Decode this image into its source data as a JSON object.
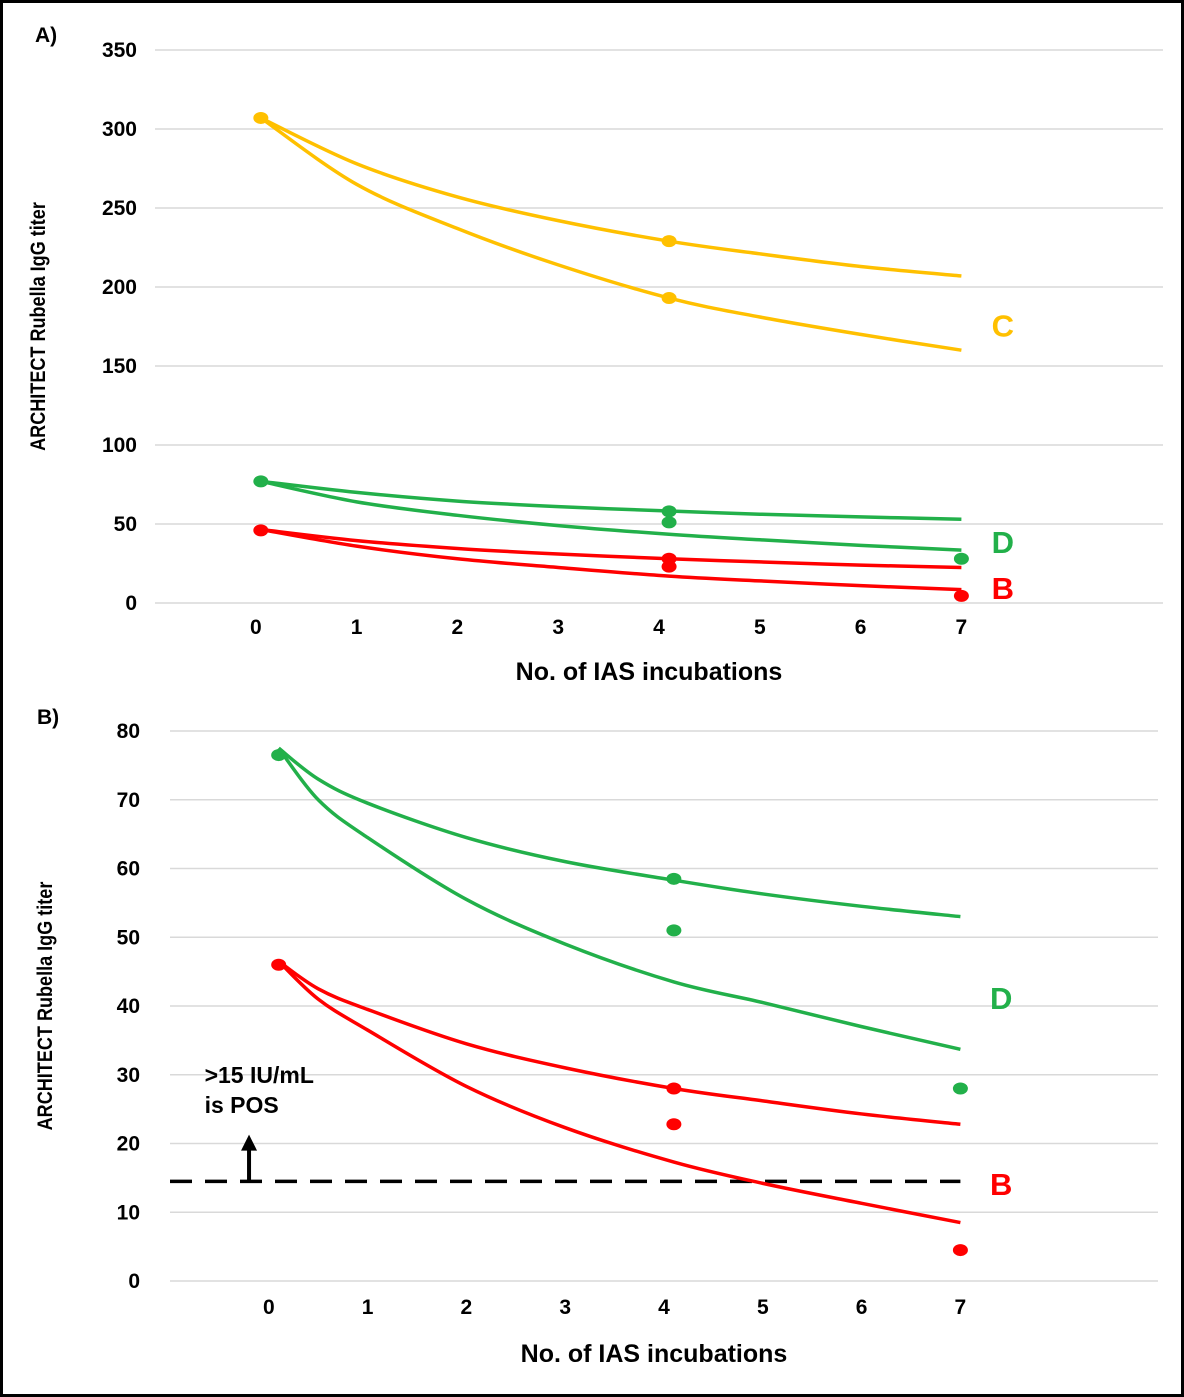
{
  "chart_data": [
    {
      "panel_label": "A)",
      "type": "scatter",
      "xlabel": "No. of IAS incubations",
      "ylabel": "ARCHITECT Rubella IgG titer",
      "xlim": [
        -1.0,
        9.0
      ],
      "ylim": [
        0,
        350
      ],
      "x_ticks": [
        "0",
        "1",
        "2",
        "3",
        "4",
        "5",
        "6",
        "7"
      ],
      "y_ticks": [
        "0",
        "50",
        "100",
        "150",
        "200",
        "250",
        "300",
        "350"
      ],
      "grid": "horizontal",
      "series": [
        {
          "group": "C",
          "color": "#FFC000",
          "points": [
            [
              0.05,
              307
            ],
            [
              4.1,
              229
            ],
            [
              4.1,
              193
            ]
          ],
          "curves": [
            [
              [
                0.05,
                307
              ],
              [
                1,
                278
              ],
              [
                2,
                257
              ],
              [
                3,
                242
              ],
              [
                4.1,
                229
              ],
              [
                5,
                221
              ],
              [
                6,
                213
              ],
              [
                7,
                207
              ]
            ],
            [
              [
                0.05,
                307
              ],
              [
                1,
                265
              ],
              [
                2,
                237
              ],
              [
                3,
                214
              ],
              [
                4.1,
                193
              ],
              [
                5,
                181
              ],
              [
                6,
                170
              ],
              [
                7,
                160
              ]
            ]
          ]
        },
        {
          "group": "D",
          "color": "#22B04A",
          "points": [
            [
              0.05,
              77
            ],
            [
              4.1,
              58
            ],
            [
              4.1,
              51
            ],
            [
              7,
              28
            ]
          ],
          "curves": [
            [
              [
                0.05,
                77
              ],
              [
                1,
                70
              ],
              [
                2,
                64.5
              ],
              [
                3,
                61
              ],
              [
                4.1,
                58.2
              ],
              [
                5,
                56.2
              ],
              [
                6,
                54.5
              ],
              [
                7,
                53
              ]
            ],
            [
              [
                0.05,
                77
              ],
              [
                1,
                64
              ],
              [
                2,
                55.5
              ],
              [
                3,
                49
              ],
              [
                4.1,
                43.5
              ],
              [
                5,
                40
              ],
              [
                6,
                36.5
              ],
              [
                7,
                33.5
              ]
            ]
          ]
        },
        {
          "group": "B",
          "color": "#FF0000",
          "points": [
            [
              0.05,
              46
            ],
            [
              4.1,
              28
            ],
            [
              4.1,
              23
            ],
            [
              7,
              4.5
            ]
          ],
          "curves": [
            [
              [
                0.05,
                46.5
              ],
              [
                1,
                39.5
              ],
              [
                2,
                34.5
              ],
              [
                3,
                31
              ],
              [
                4.1,
                28
              ],
              [
                5,
                26
              ],
              [
                6,
                24
              ],
              [
                7,
                22.5
              ]
            ],
            [
              [
                0.05,
                46.5
              ],
              [
                1,
                36
              ],
              [
                2,
                28
              ],
              [
                3,
                22.5
              ],
              [
                4.1,
                17
              ],
              [
                5,
                14
              ],
              [
                6,
                11
              ],
              [
                7,
                8.5
              ]
            ]
          ]
        }
      ],
      "group_labels": [
        {
          "text": "C",
          "color": "#FFC000",
          "x": 7.3,
          "y": 175
        },
        {
          "text": "D",
          "color": "#22B04A",
          "x": 7.3,
          "y": 38
        },
        {
          "text": "B",
          "color": "#FF0000",
          "x": 7.3,
          "y": 9
        }
      ]
    },
    {
      "panel_label": "B)",
      "type": "scatter",
      "xlabel": "No. of IAS incubations",
      "ylabel": "ARCHITECT Rubella IgG titer",
      "xlim": [
        -1.0,
        9.0
      ],
      "ylim": [
        0,
        80
      ],
      "x_ticks": [
        "0",
        "1",
        "2",
        "3",
        "4",
        "5",
        "6",
        "7"
      ],
      "y_ticks": [
        "0",
        "10",
        "20",
        "30",
        "40",
        "50",
        "60",
        "70",
        "80"
      ],
      "grid": "horizontal",
      "series": [
        {
          "group": "D",
          "color": "#22B04A",
          "points": [
            [
              0.1,
              76.5
            ],
            [
              4.1,
              58.5
            ],
            [
              4.1,
              51
            ],
            [
              7,
              28
            ]
          ],
          "curves": [
            [
              [
                0.1,
                77.5
              ],
              [
                0.5,
                73
              ],
              [
                1,
                69.5
              ],
              [
                2,
                64.5
              ],
              [
                3,
                61
              ],
              [
                4.1,
                58.3
              ],
              [
                5,
                56.3
              ],
              [
                6,
                54.5
              ],
              [
                7,
                53
              ]
            ],
            [
              [
                0.1,
                77.5
              ],
              [
                0.5,
                70
              ],
              [
                1,
                64.5
              ],
              [
                2,
                55.5
              ],
              [
                3,
                49
              ],
              [
                4.1,
                43.5
              ],
              [
                5,
                40.5
              ],
              [
                6,
                37
              ],
              [
                7,
                33.7
              ]
            ]
          ]
        },
        {
          "group": "B",
          "color": "#FF0000",
          "points": [
            [
              0.1,
              46
            ],
            [
              4.1,
              28
            ],
            [
              4.1,
              22.8
            ],
            [
              7,
              4.5
            ]
          ],
          "curves": [
            [
              [
                0.1,
                46.5
              ],
              [
                0.5,
                42.5
              ],
              [
                1,
                39.5
              ],
              [
                2,
                34.5
              ],
              [
                3,
                31
              ],
              [
                4.1,
                28
              ],
              [
                5,
                26.2
              ],
              [
                6,
                24.3
              ],
              [
                7,
                22.8
              ]
            ],
            [
              [
                0.1,
                46.5
              ],
              [
                0.5,
                41
              ],
              [
                1,
                36.5
              ],
              [
                2,
                28.3
              ],
              [
                3,
                22.3
              ],
              [
                4.1,
                17.3
              ],
              [
                5,
                14.2
              ],
              [
                6,
                11.3
              ],
              [
                7,
                8.5
              ]
            ]
          ]
        }
      ],
      "group_labels": [
        {
          "text": "D",
          "color": "#22B04A",
          "x": 7.3,
          "y": 41
        },
        {
          "text": "B",
          "color": "#FF0000",
          "x": 7.3,
          "y": 14
        }
      ],
      "threshold": {
        "y": 14.5,
        "xmin": -1.0,
        "xmax": 7.0,
        "style": "dashed",
        "color": "#000000"
      },
      "arrow": {
        "x": -0.2,
        "y_from": 14.5,
        "y_to": 21
      },
      "annotation_lines": [
        ">15 IU/mL",
        "is POS"
      ],
      "annotation_pos": {
        "x": -0.65,
        "y": 28.8
      }
    }
  ]
}
